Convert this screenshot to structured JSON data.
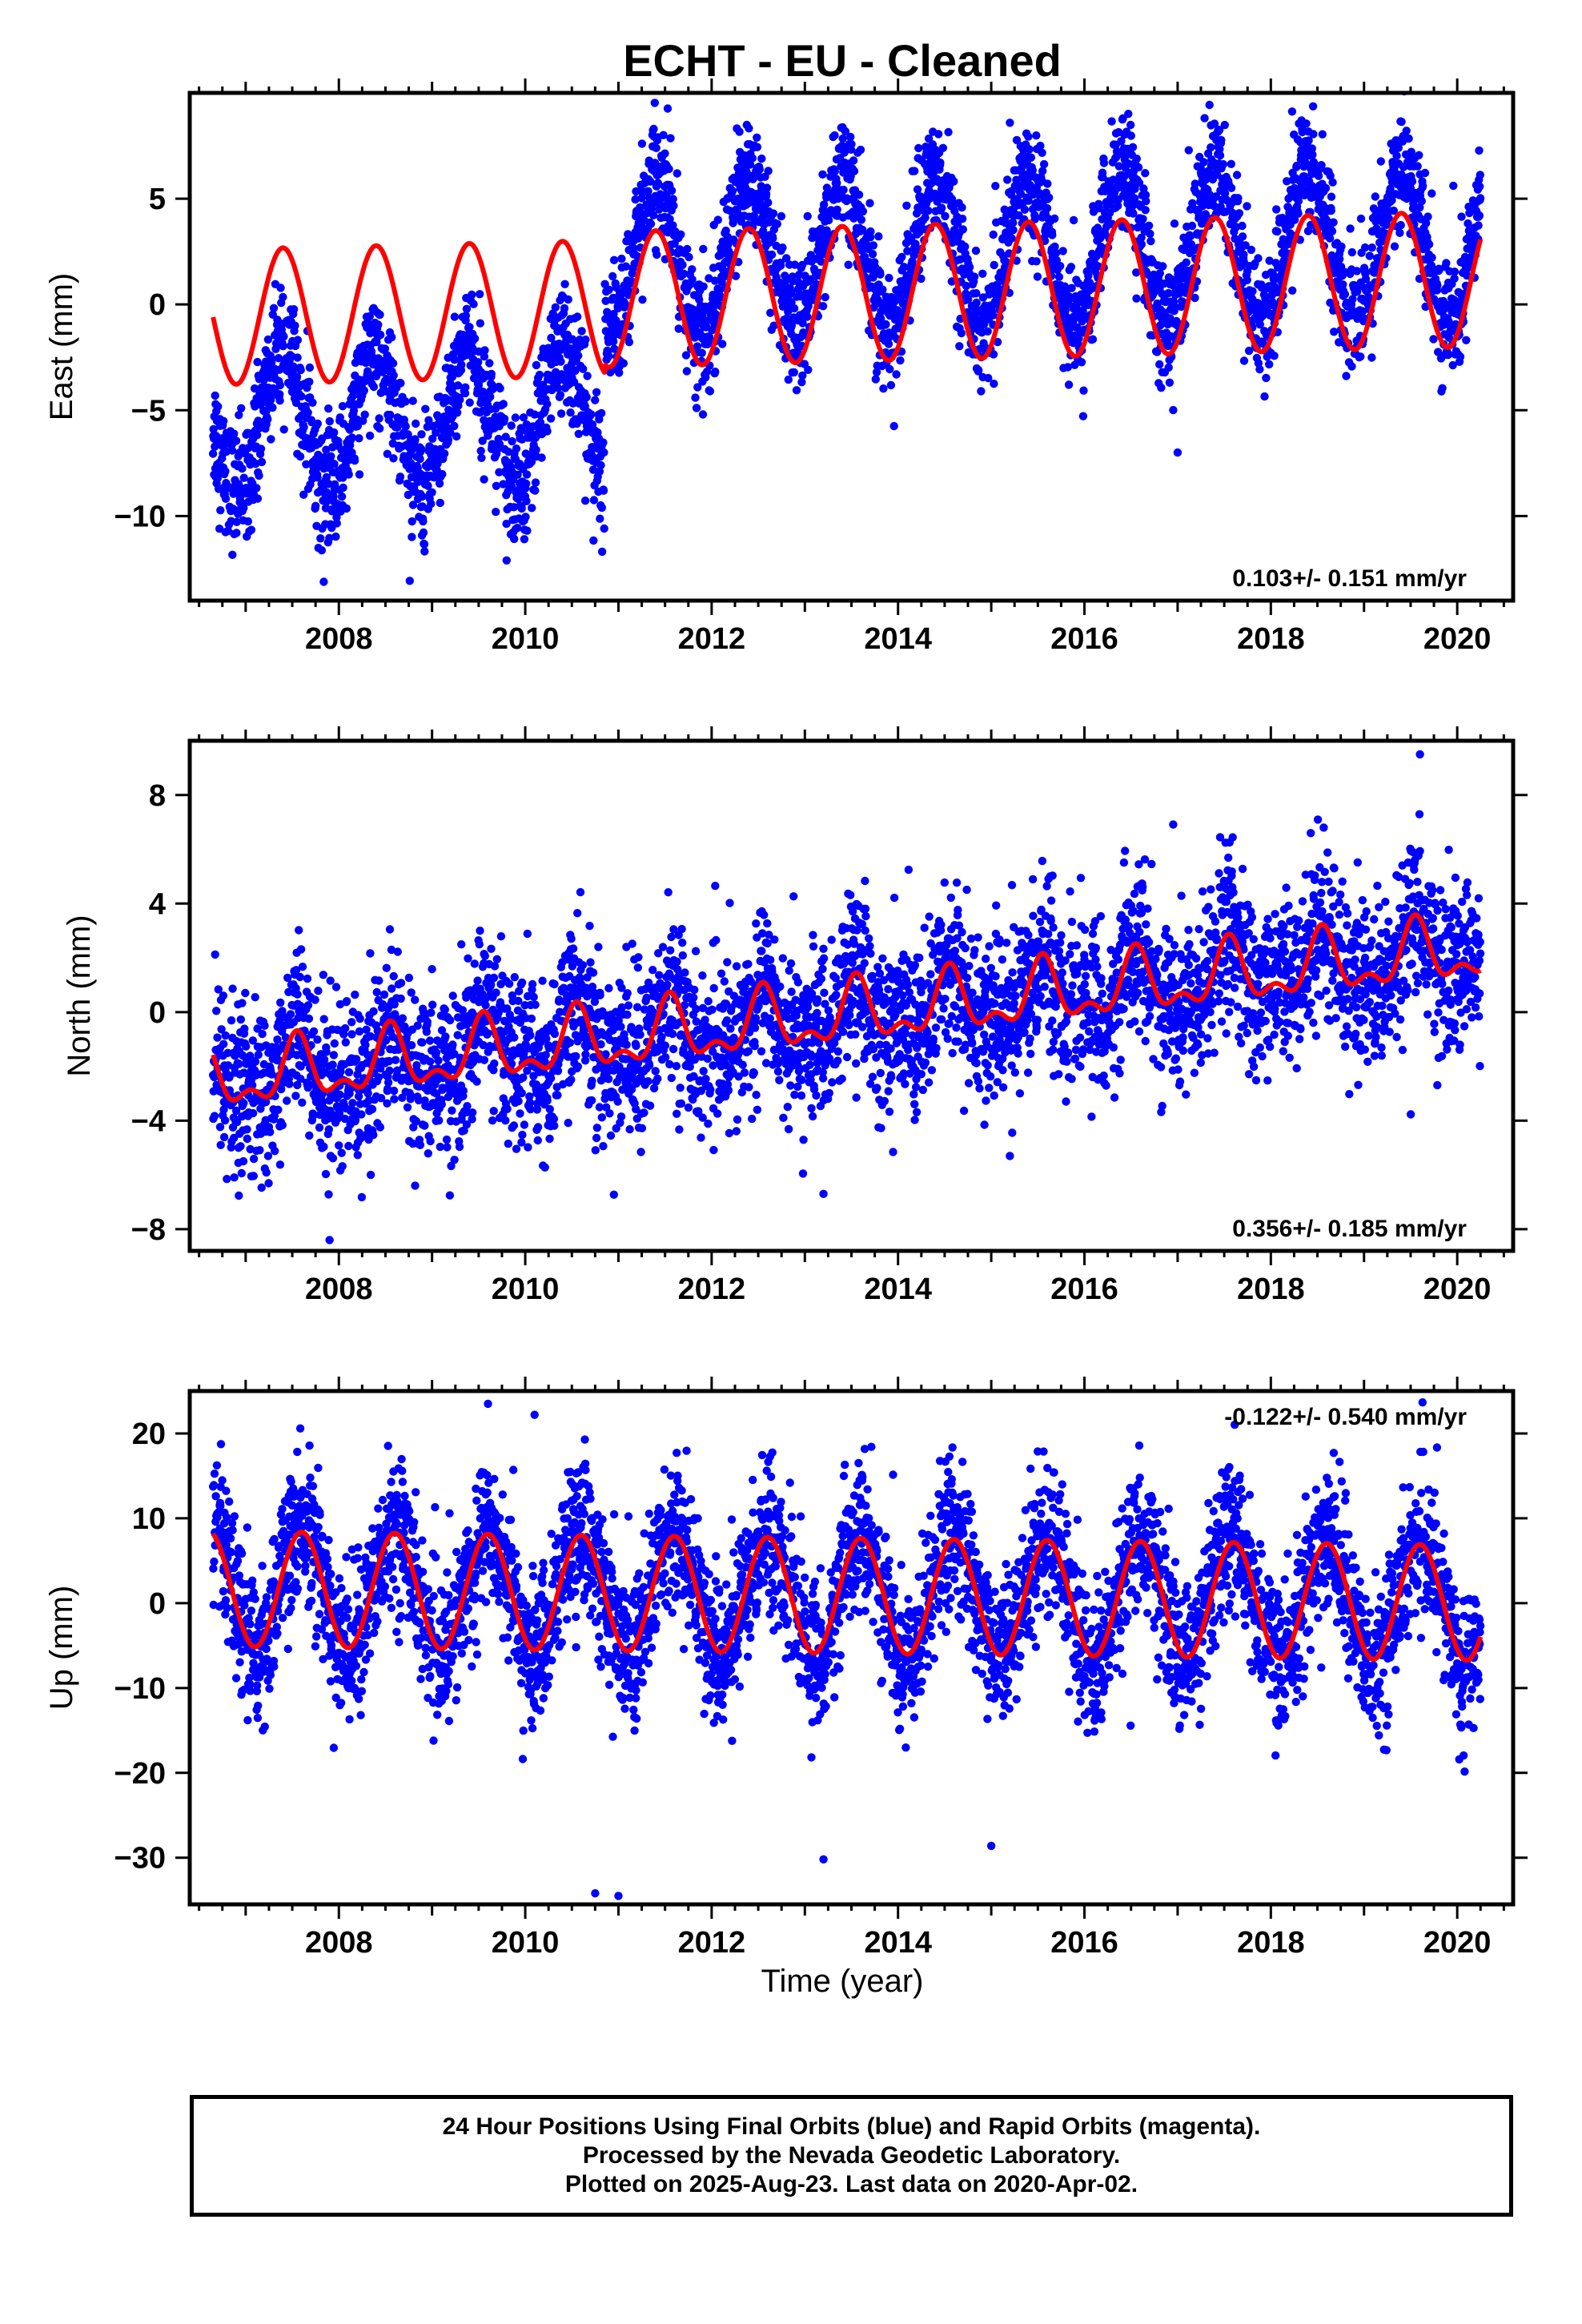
{
  "chart_data": {
    "type": "scatter",
    "title": "ECHT  - EU - Cleaned",
    "xlabel": "Time (year)",
    "xlim": [
      2006.4,
      2020.6
    ],
    "x_ticks": [
      2008,
      2010,
      2012,
      2014,
      2016,
      2018,
      2020
    ],
    "colors": {
      "points": "#0000ff",
      "model": "#ff0000",
      "frame": "#000000"
    },
    "data_span": [
      2006.65,
      2020.25
    ],
    "panels": [
      {
        "name": "east",
        "ylabel": "East (mm)",
        "ylim": [
          -14,
          10
        ],
        "y_ticks": [
          -10,
          -5,
          0,
          5
        ],
        "rate_text": "0.103+/- 0.151 mm/yr",
        "model": {
          "segments": [
            {
              "from": 2006.65,
              "to": 2010.85,
              "offset": -0.6,
              "trend": 0.103,
              "annual_amp": 3.2,
              "annual_peak": 2006.4
            },
            {
              "from": 2010.85,
              "to": 2020.25,
              "offset": -0.2,
              "trend": 0.103,
              "annual_amp": 3.2,
              "annual_peak": 2006.4
            }
          ]
        },
        "observed": {
          "segments": [
            {
              "from": 2006.65,
              "to": 2010.85,
              "offset": -5.6,
              "trend": 0.103,
              "annual_amp": 3.2,
              "annual_peak": 2006.4
            },
            {
              "from": 2010.85,
              "to": 2020.25,
              "offset": 1.6,
              "trend": 0.103,
              "annual_amp": 3.6,
              "annual_peak": 2006.4
            }
          ],
          "noise_sd": 1.4
        },
        "outliers": [
          [
            2017.0,
            -7.0
          ],
          [
            2009.8,
            -12.1
          ]
        ]
      },
      {
        "name": "north",
        "ylabel": "North (mm)",
        "ylim": [
          -8.8,
          10
        ],
        "y_ticks": [
          -8,
          -4,
          0,
          4,
          8
        ],
        "rate_text": "0.356+/- 0.185 mm/yr",
        "model": {
          "segments": [
            {
              "from": 2006.65,
              "to": 2020.25,
              "offset": -2.55,
              "trend": 0.356,
              "annual_amp": 1.0,
              "annual_peak": 2006.55,
              "semi_amp": 0.55,
              "semi_peak": 2006.55
            }
          ]
        },
        "observed": {
          "segments": [
            {
              "from": 2006.65,
              "to": 2020.25,
              "offset": -2.55,
              "trend": 0.356,
              "annual_amp": 1.0,
              "annual_peak": 2006.55,
              "semi_amp": 0.55,
              "semi_peak": 2006.55
            }
          ],
          "noise_sd": 1.5
        },
        "outliers": [
          [
            2007.9,
            -8.4
          ],
          [
            2019.6,
            9.5
          ],
          [
            2015.2,
            -5.3
          ],
          [
            2013.2,
            -6.7
          ]
        ]
      },
      {
        "name": "up",
        "ylabel": "Up (mm)",
        "ylim": [
          -35.5,
          25
        ],
        "y_ticks": [
          -30,
          -20,
          -10,
          0,
          10,
          20
        ],
        "rate_text": "-0.122+/- 0.540 mm/yr",
        "model": {
          "segments": [
            {
              "from": 2006.65,
              "to": 2020.25,
              "offset": 1.7,
              "trend": -0.122,
              "annual_amp": 6.8,
              "annual_peak": 2006.6
            }
          ]
        },
        "observed": {
          "segments": [
            {
              "from": 2006.65,
              "to": 2020.25,
              "offset": 1.7,
              "trend": -0.122,
              "annual_amp": 7.2,
              "annual_peak": 2006.6
            }
          ],
          "noise_sd": 4.3
        },
        "outliers": [
          [
            2010.75,
            -34.2
          ],
          [
            2011.0,
            -34.5
          ],
          [
            2013.2,
            -30.2
          ],
          [
            2015.0,
            -28.6
          ],
          [
            2009.6,
            23.5
          ],
          [
            2010.1,
            22.2
          ]
        ]
      }
    ]
  },
  "footer": {
    "line1": "24 Hour Positions Using Final Orbits (blue) and Rapid Orbits (magenta).",
    "line2": "Processed by the Nevada Geodetic Laboratory.",
    "line3": "Plotted on 2025-Aug-23. Last data on 2020-Apr-02."
  }
}
